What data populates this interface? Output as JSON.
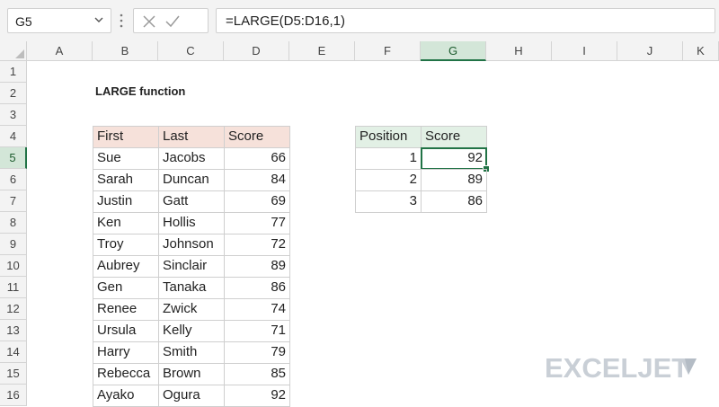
{
  "formula_bar": {
    "name_box": "G5",
    "formula": "=LARGE(D5:D16,1)",
    "fx_label": "fx"
  },
  "grid": {
    "columns": [
      {
        "label": "A"
      },
      {
        "label": "B"
      },
      {
        "label": "C"
      },
      {
        "label": "D"
      },
      {
        "label": "E"
      },
      {
        "label": "F"
      },
      {
        "label": "G"
      },
      {
        "label": "H"
      },
      {
        "label": "I"
      },
      {
        "label": "J"
      },
      {
        "label": "K"
      }
    ],
    "rows": [
      "1",
      "2",
      "3",
      "4",
      "5",
      "6",
      "7",
      "8",
      "9",
      "10",
      "11",
      "12",
      "13",
      "14",
      "15",
      "16"
    ],
    "selected_column": "G",
    "selected_row": "5"
  },
  "sheet": {
    "title": "LARGE function",
    "table1": {
      "headers": [
        "First",
        "Last",
        "Score"
      ],
      "rows": [
        [
          "Sue",
          "Jacobs",
          "66"
        ],
        [
          "Sarah",
          "Duncan",
          "84"
        ],
        [
          "Justin",
          "Gatt",
          "69"
        ],
        [
          "Ken",
          "Hollis",
          "77"
        ],
        [
          "Troy",
          "Johnson",
          "72"
        ],
        [
          "Aubrey",
          "Sinclair",
          "89"
        ],
        [
          "Gen",
          "Tanaka",
          "86"
        ],
        [
          "Renee",
          "Zwick",
          "74"
        ],
        [
          "Ursula",
          "Kelly",
          "71"
        ],
        [
          "Harry",
          "Smith",
          "79"
        ],
        [
          "Rebecca",
          "Brown",
          "85"
        ],
        [
          "Ayako",
          "Ogura",
          "92"
        ]
      ]
    },
    "table2": {
      "headers": [
        "Position",
        "Score"
      ],
      "rows": [
        [
          "1",
          "92"
        ],
        [
          "2",
          "89"
        ],
        [
          "3",
          "86"
        ]
      ]
    }
  },
  "logo": {
    "text": "EXCELJET"
  },
  "colors": {
    "accent": "#217346",
    "header_pink": "#f6e1da",
    "header_green": "#e2f0e5"
  }
}
